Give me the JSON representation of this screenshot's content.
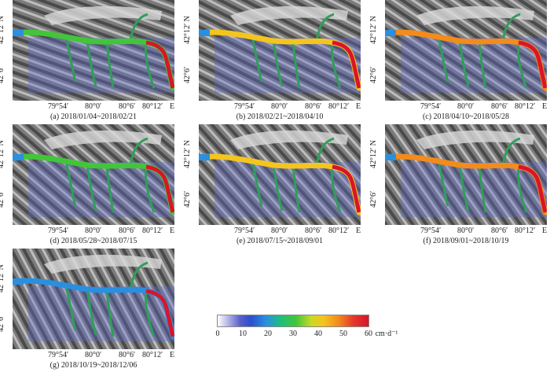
{
  "lat_labels": [
    "42°12′ N",
    "42°6′"
  ],
  "lon_labels": [
    "79°54′",
    "80°0′",
    "80°6′",
    "80°12′",
    "E"
  ],
  "panels": [
    {
      "caption": "(a) 2018/01/04~2018/02/21"
    },
    {
      "caption": "(b) 2018/02/21~2018/04/10"
    },
    {
      "caption": "(c) 2018/04/10~2018/05/28"
    },
    {
      "caption": "(d) 2018/05/28~2018/07/15"
    },
    {
      "caption": "(e) 2018/07/15~2018/09/01"
    },
    {
      "caption": "(f) 2018/09/01~2018/10/19"
    },
    {
      "caption": "(g) 2018/10/19~2018/12/06"
    }
  ],
  "colorbar": {
    "ticks": [
      "0",
      "10",
      "20",
      "30",
      "40",
      "50",
      "60"
    ],
    "unit": "cm·d⁻¹",
    "colors": [
      "#ffffff",
      "#2a4fcf",
      "#1fbf7a",
      "#43c53a",
      "#f4c51e",
      "#f38b1d",
      "#d9152a"
    ]
  }
}
